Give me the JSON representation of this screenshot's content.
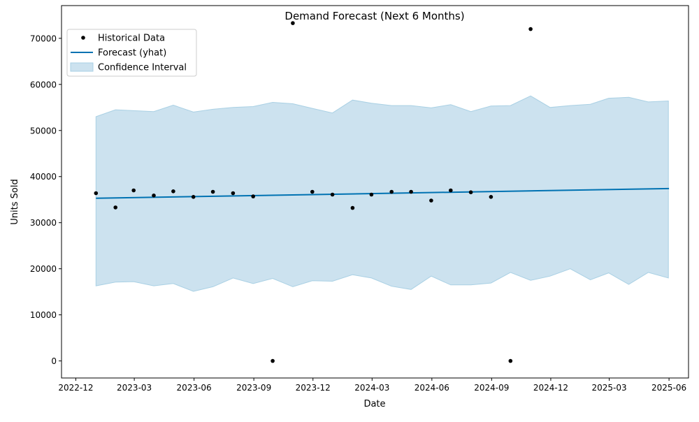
{
  "chart_data": {
    "type": "line",
    "title": "Demand Forecast (Next 6 Months)",
    "xlabel": "Date",
    "ylabel": "Units Sold",
    "x_axis": {
      "kind": "date",
      "range": [
        "2022-11-09",
        "2025-07-01"
      ],
      "ticks": [
        "2022-12-01",
        "2023-03-01",
        "2023-06-01",
        "2023-09-01",
        "2023-12-01",
        "2024-03-01",
        "2024-06-01",
        "2024-09-01",
        "2024-12-01",
        "2025-03-01",
        "2025-06-01"
      ],
      "tick_labels": [
        "2022-12",
        "2023-03",
        "2023-06",
        "2023-09",
        "2023-12",
        "2024-03",
        "2024-06",
        "2024-09",
        "2024-12",
        "2025-03",
        "2025-06"
      ]
    },
    "y_axis": {
      "range": [
        -3700,
        77100
      ],
      "ticks": [
        0,
        10000,
        20000,
        30000,
        40000,
        50000,
        60000,
        70000
      ],
      "tick_labels": [
        "0",
        "10000",
        "20000",
        "30000",
        "40000",
        "50000",
        "60000",
        "70000"
      ]
    },
    "legend": {
      "placement": "top-left",
      "entries": [
        {
          "label": "Historical Data",
          "marker": "dot",
          "color": "#000000"
        },
        {
          "label": "Forecast (yhat)",
          "marker": "line",
          "color": "#0072B2"
        },
        {
          "label": "Confidence Interval",
          "marker": "patch",
          "color": "#cce2ef"
        }
      ]
    },
    "colors": {
      "historical": "#000000",
      "forecast": "#0072B2",
      "band_fill": "#cce2ef",
      "band_edge": "#a9d0e4"
    },
    "series": [
      {
        "name": "Historical Data",
        "kind": "scatter",
        "x": [
          "2023-01-01",
          "2023-01-31",
          "2023-02-28",
          "2023-03-31",
          "2023-04-30",
          "2023-05-31",
          "2023-06-30",
          "2023-07-31",
          "2023-08-31",
          "2023-09-30",
          "2023-10-31",
          "2023-11-30",
          "2023-12-31",
          "2024-01-31",
          "2024-02-29",
          "2024-03-31",
          "2024-04-30",
          "2024-05-31",
          "2024-06-30",
          "2024-07-31",
          "2024-08-31",
          "2024-09-30",
          "2024-10-31"
        ],
        "y": [
          36400,
          33300,
          37000,
          35900,
          36800,
          35600,
          36700,
          36400,
          35700,
          0,
          73300,
          36700,
          36100,
          33200,
          36100,
          36700,
          36700,
          34800,
          37000,
          36600,
          35600,
          0,
          72000
        ]
      },
      {
        "name": "Forecast (yhat)",
        "kind": "line",
        "x": [
          "2023-01-01",
          "2025-06-01"
        ],
        "y": [
          35300,
          37400
        ]
      },
      {
        "name": "Confidence Interval",
        "kind": "band",
        "x": [
          "2023-01-01",
          "2023-01-31",
          "2023-02-28",
          "2023-03-31",
          "2023-04-30",
          "2023-05-31",
          "2023-06-30",
          "2023-07-31",
          "2023-08-31",
          "2023-09-30",
          "2023-10-31",
          "2023-11-30",
          "2023-12-31",
          "2024-01-31",
          "2024-02-29",
          "2024-03-31",
          "2024-04-30",
          "2024-05-31",
          "2024-06-30",
          "2024-07-31",
          "2024-08-31",
          "2024-09-30",
          "2024-10-31",
          "2024-11-30",
          "2024-12-31",
          "2025-01-31",
          "2025-02-28",
          "2025-03-31",
          "2025-04-30",
          "2025-05-31"
        ],
        "upper": [
          53000,
          54500,
          54300,
          54100,
          55500,
          54000,
          54600,
          55000,
          55200,
          56100,
          55800,
          54800,
          53800,
          56600,
          55900,
          55400,
          55400,
          54900,
          55600,
          54100,
          55300,
          55400,
          57500,
          55000,
          55400,
          55700,
          57000,
          57200,
          56200,
          56400
        ],
        "lower": [
          16300,
          17100,
          17200,
          16300,
          16800,
          15100,
          16100,
          18000,
          16800,
          17900,
          16100,
          17400,
          17300,
          18700,
          18000,
          16200,
          15500,
          18400,
          16500,
          16500,
          16900,
          19200,
          17500,
          18400,
          20000,
          17600,
          19100,
          16600,
          19200,
          18000
        ]
      }
    ]
  }
}
